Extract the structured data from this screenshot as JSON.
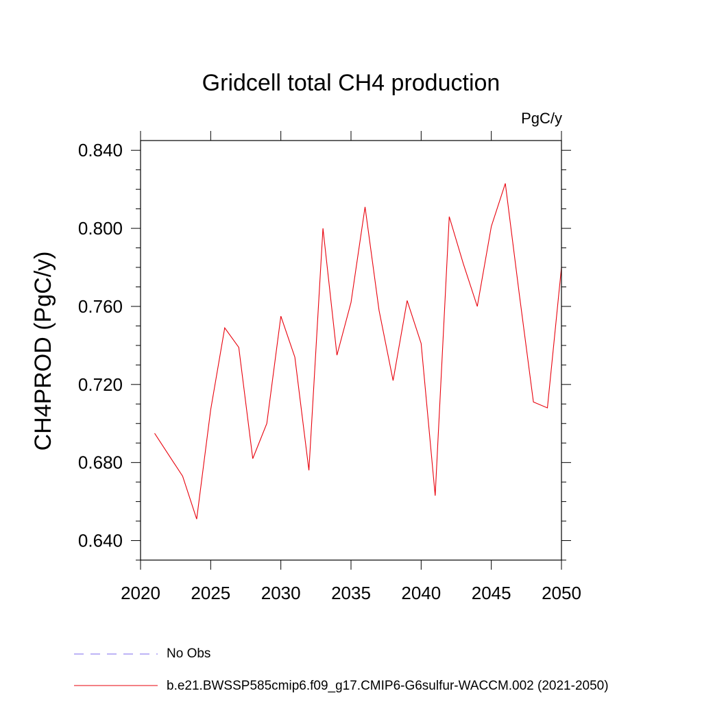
{
  "chart_data": {
    "type": "line",
    "title": "Gridcell total CH4 production",
    "units_label": "PgC/y",
    "ylabel": "CH4PROD  (PgC/y)",
    "xlabel": "",
    "xlim": [
      2020,
      2050
    ],
    "ylim": [
      0.63,
      0.845
    ],
    "x_major_ticks": [
      2020,
      2025,
      2030,
      2035,
      2040,
      2045,
      2050
    ],
    "x_tick_labels": [
      "2020",
      "2025",
      "2030",
      "2035",
      "2040",
      "2045",
      "2050"
    ],
    "y_major_ticks": [
      0.64,
      0.68,
      0.72,
      0.76,
      0.8,
      0.84
    ],
    "y_tick_labels": [
      "0.640",
      "0.680",
      "0.720",
      "0.760",
      "0.800",
      "0.840"
    ],
    "grid": false,
    "legend_position": "bottom",
    "series": [
      {
        "name": "b.e21.BWSSP585cmip6.f09_g17.CMIP6-G6sulfur-WACCM.002 (2021-2050)",
        "color": "#e8000b",
        "dash": "solid",
        "x": [
          2021,
          2022,
          2023,
          2024,
          2025,
          2026,
          2027,
          2028,
          2029,
          2030,
          2031,
          2032,
          2033,
          2034,
          2035,
          2036,
          2037,
          2038,
          2039,
          2040,
          2041,
          2042,
          2043,
          2044,
          2045,
          2046,
          2047,
          2048,
          2049,
          2050
        ],
        "values": [
          0.695,
          0.684,
          0.673,
          0.651,
          0.707,
          0.749,
          0.739,
          0.682,
          0.7,
          0.755,
          0.734,
          0.676,
          0.8,
          0.735,
          0.762,
          0.811,
          0.758,
          0.722,
          0.763,
          0.741,
          0.663,
          0.806,
          0.782,
          0.76,
          0.801,
          0.823,
          0.766,
          0.711,
          0.708,
          0.78
        ]
      },
      {
        "name": "No Obs",
        "color": "#7b68ee",
        "dash": "dashed",
        "x": [],
        "values": []
      }
    ]
  }
}
